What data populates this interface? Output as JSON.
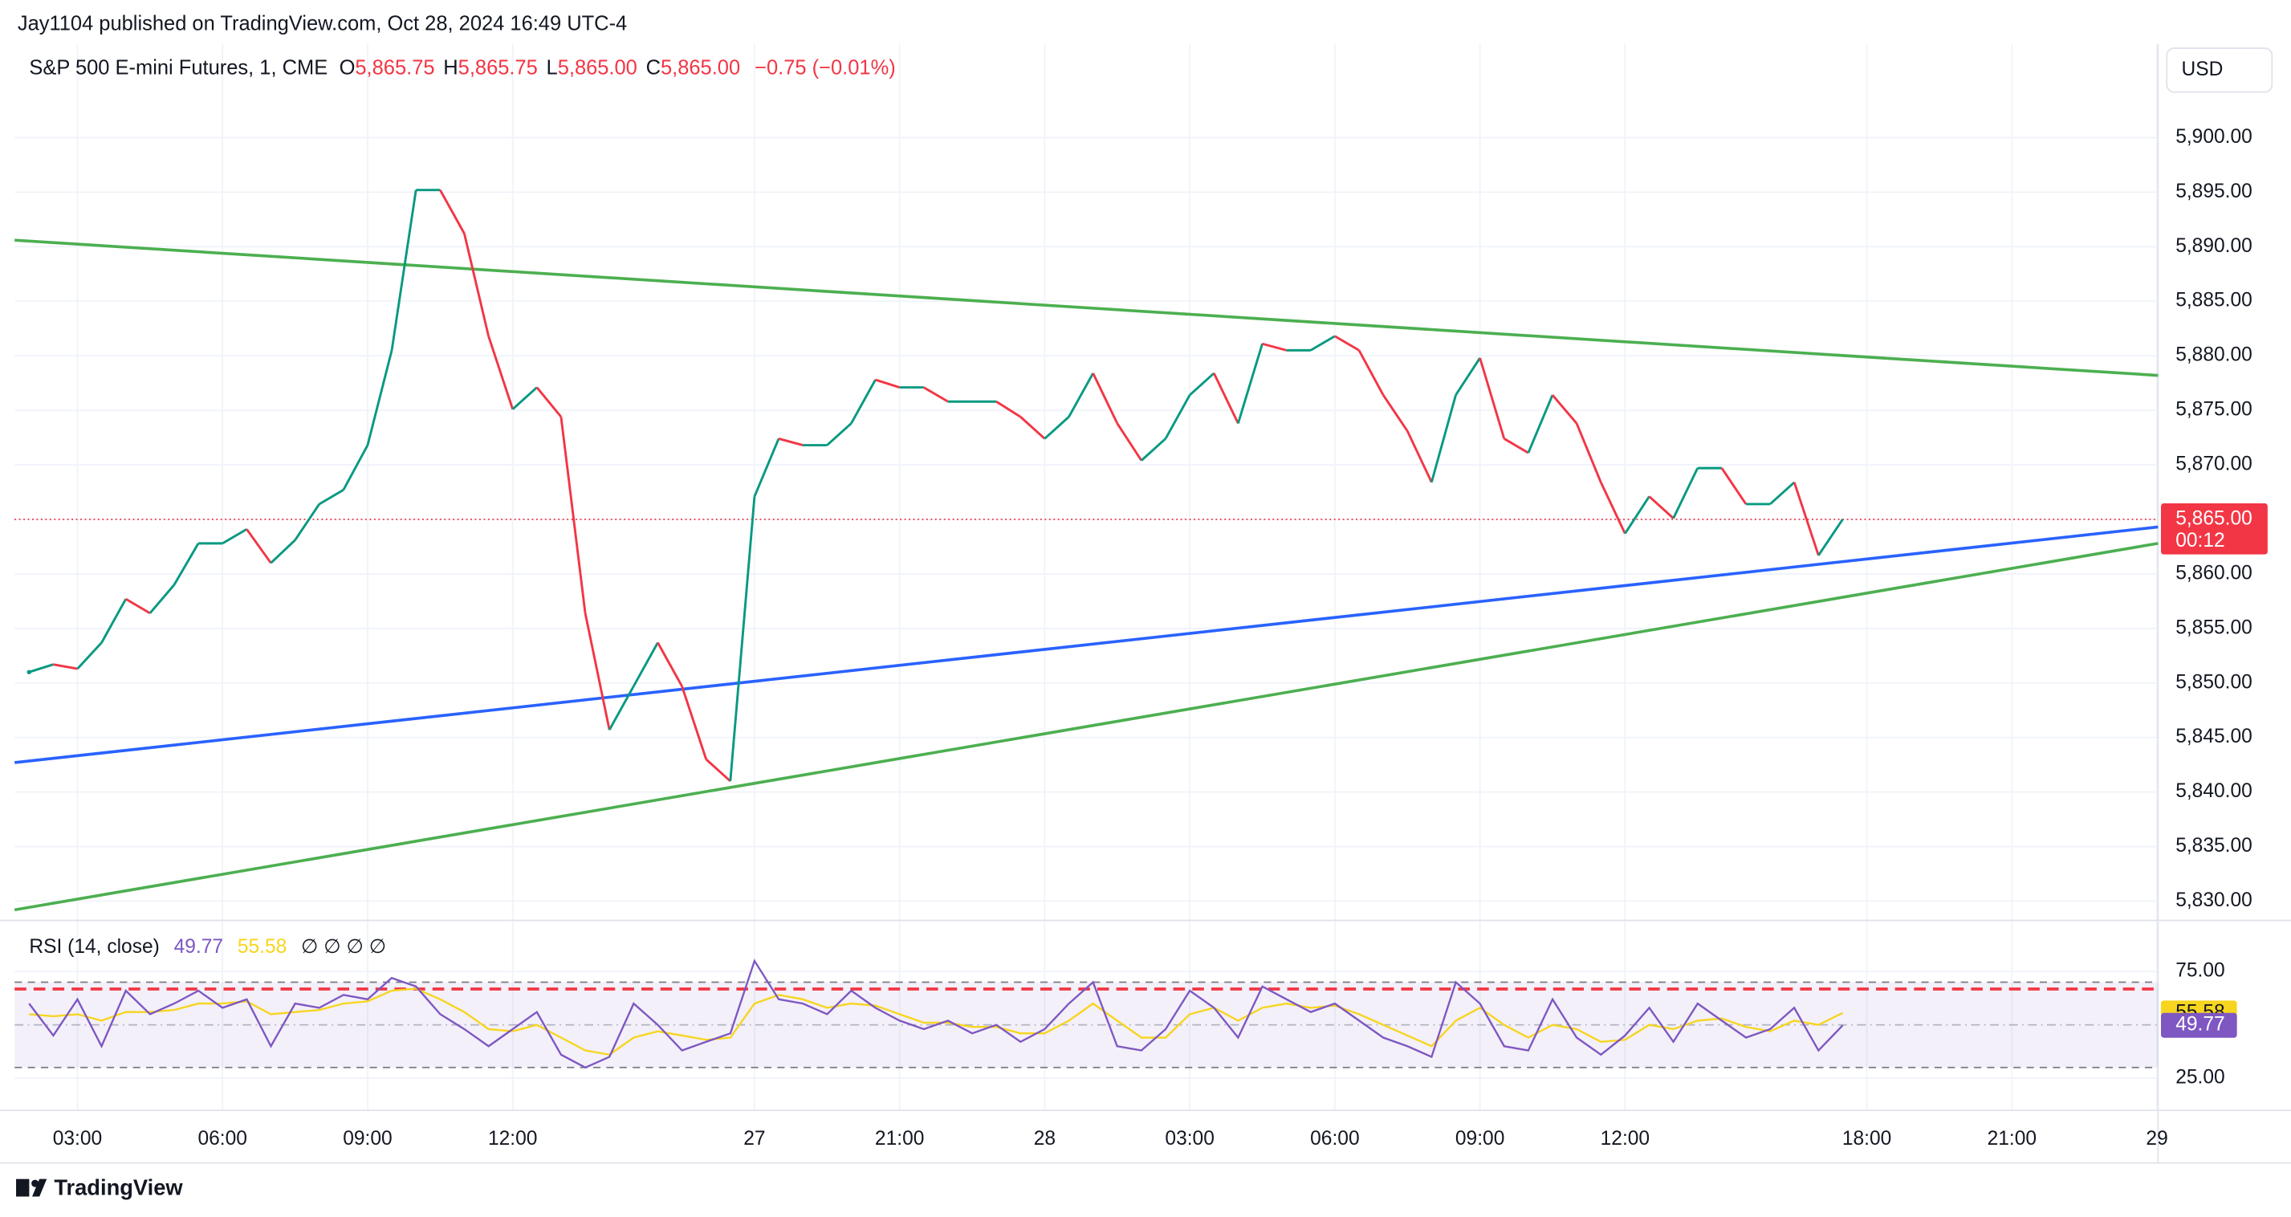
{
  "header": {
    "published": "Jay1104 published on TradingView.com, Oct 28, 2024 16:49 UTC-4"
  },
  "currency": "USD",
  "footer": {
    "brand": "TradingView"
  },
  "chart_data": [
    {
      "type": "line",
      "symbol": "S&P 500 E-mini Futures, 1, CME",
      "ohlc": [
        {
          "key": "O",
          "text": "5,865.75"
        },
        {
          "key": "H",
          "text": "5,865.75"
        },
        {
          "key": "L",
          "text": "5,865.00"
        },
        {
          "key": "C",
          "text": "5,865.00"
        }
      ],
      "change": "−0.75 (−0.01%)",
      "last_price": {
        "value": 5865,
        "label": "5,865.00",
        "color": "#f23645"
      },
      "countdown": "00:12",
      "categories": [
        null,
        null,
        "03:00",
        null,
        null,
        null,
        null,
        null,
        "06:00",
        null,
        null,
        null,
        null,
        null,
        "09:00",
        null,
        null,
        null,
        null,
        null,
        "12:00",
        null,
        null,
        null,
        null,
        null,
        null,
        null,
        null,
        null,
        "27",
        null,
        null,
        null,
        null,
        null,
        "21:00",
        null,
        null,
        null,
        null,
        null,
        "28",
        null,
        null,
        null,
        null,
        null,
        "03:00",
        null,
        null,
        null,
        null,
        null,
        "06:00",
        null,
        null,
        null,
        null,
        null,
        "09:00",
        null,
        null,
        null,
        null,
        null,
        "12:00",
        null,
        null,
        null,
        null,
        null,
        null,
        null,
        null,
        null,
        "18:00",
        null,
        null,
        null,
        null,
        null,
        "21:00",
        null,
        null,
        null,
        null,
        null,
        "29"
      ],
      "series": [
        {
          "up_color": "#089981",
          "down_color": "#f23645",
          "values": [
            5851.0,
            5851.7,
            5851.3,
            5853.7,
            5857.7,
            5856.4,
            5859.0,
            5862.8,
            5862.8,
            5864.1,
            5861.0,
            5863.1,
            5866.4,
            5867.7,
            5871.8,
            5880.5,
            5895.2,
            5895.2,
            5891.2,
            5881.8,
            5875.1,
            5877.1,
            5874.4,
            5856.4,
            5845.7,
            5849.7,
            5853.7,
            5849.7,
            5843.0,
            5841.0,
            5867.1,
            5872.4,
            5871.8,
            5871.8,
            5873.8,
            5877.8,
            5877.1,
            5877.1,
            5875.8,
            5875.8,
            5875.8,
            5874.4,
            5872.4,
            5874.4,
            5878.4,
            5873.8,
            5870.4,
            5872.4,
            5876.4,
            5878.4,
            5873.8,
            5881.1,
            5880.5,
            5880.5,
            5881.8,
            5880.5,
            5876.4,
            5873.1,
            5868.4,
            5876.4,
            5879.8,
            5872.4,
            5871.1,
            5876.4,
            5873.8,
            5868.4,
            5863.7,
            5867.1,
            5865.1,
            5869.7,
            5869.7,
            5866.4,
            5866.4,
            5868.4,
            5861.7,
            5865,
            null,
            null,
            null,
            null,
            null,
            null,
            null,
            null,
            null,
            null,
            null,
            null,
            null
          ]
        }
      ],
      "trendlines": [
        {
          "color": "#4caf50",
          "start": 5890.6,
          "end": 5878.2
        },
        {
          "color": "#2962ff",
          "start": 5842.7,
          "end": 5864.3
        },
        {
          "color": "#4caf50",
          "start": 5829.2,
          "end": 5862.8
        }
      ],
      "ylim": [
        5828.9,
        5908.6
      ],
      "yticks": [
        {
          "value": 5830,
          "label": "5,830.00"
        },
        {
          "value": 5835,
          "label": "5,835.00"
        },
        {
          "value": 5840,
          "label": "5,840.00"
        },
        {
          "value": 5845,
          "label": "5,845.00"
        },
        {
          "value": 5850,
          "label": "5,850.00"
        },
        {
          "value": 5855,
          "label": "5,855.00"
        },
        {
          "value": 5860,
          "label": "5,860.00"
        },
        {
          "value": 5865,
          "label": "5,865.00"
        },
        {
          "value": 5870,
          "label": "5,870.00"
        },
        {
          "value": 5875,
          "label": "5,875.00"
        },
        {
          "value": 5880,
          "label": "5,880.00"
        },
        {
          "value": 5885,
          "label": "5,885.00"
        },
        {
          "value": 5890,
          "label": "5,890.00"
        },
        {
          "value": 5895,
          "label": "5,895.00"
        },
        {
          "value": 5900,
          "label": "5,900.00"
        }
      ],
      "grid": true
    },
    {
      "type": "line",
      "title": "RSI (14, close)",
      "hidden_values": "∅ ∅ ∅ ∅",
      "series": [
        {
          "color": "#7e57c2",
          "values": [
            60,
            45,
            62,
            40,
            66,
            55,
            60,
            66,
            58,
            62,
            40,
            60,
            58,
            64,
            62,
            72,
            68,
            55,
            48,
            40,
            48,
            56,
            36,
            30,
            35,
            60,
            50,
            38,
            42,
            46,
            80,
            62,
            60,
            55,
            66,
            58,
            52,
            48,
            52,
            46,
            50,
            42,
            48,
            60,
            70,
            40,
            38,
            48,
            66,
            58,
            44,
            68,
            62,
            56,
            60,
            52,
            44,
            40,
            35,
            70,
            60,
            40,
            38,
            62,
            44,
            36,
            45,
            58,
            42,
            60,
            52,
            44,
            48,
            58,
            38,
            49.77,
            null,
            null,
            null,
            null,
            null,
            null,
            null,
            null,
            null,
            null,
            null,
            null,
            null
          ]
        },
        {
          "color": "#f7d51e",
          "values": [
            55,
            54,
            55,
            52,
            56,
            56,
            57,
            60,
            60,
            61,
            55,
            56,
            57,
            60,
            61,
            66,
            67,
            62,
            56,
            48,
            47,
            50,
            44,
            38,
            36,
            44,
            47,
            45,
            43,
            44,
            60,
            64,
            62,
            58,
            60,
            59,
            55,
            51,
            51,
            49,
            49,
            46,
            46,
            52,
            60,
            52,
            44,
            44,
            55,
            58,
            52,
            58,
            60,
            58,
            59,
            55,
            50,
            45,
            40,
            52,
            58,
            50,
            44,
            50,
            48,
            42,
            43,
            50,
            48,
            52,
            53,
            49,
            47,
            52,
            50,
            55.58,
            null,
            null,
            null,
            null,
            null,
            null,
            null,
            null,
            null,
            null,
            null,
            null,
            null
          ]
        }
      ],
      "band_upper": 70,
      "band_lower": 30,
      "midline": 50,
      "band_color": "#7e57c2",
      "horizontal_lines": [
        {
          "value": 66.8,
          "color": "#f23645"
        }
      ],
      "ylim": [
        9.9,
        97.6
      ],
      "yticks": [
        {
          "value": 25,
          "label": "25.00"
        },
        {
          "value": 75,
          "label": "75.00"
        }
      ],
      "grid": true
    }
  ]
}
